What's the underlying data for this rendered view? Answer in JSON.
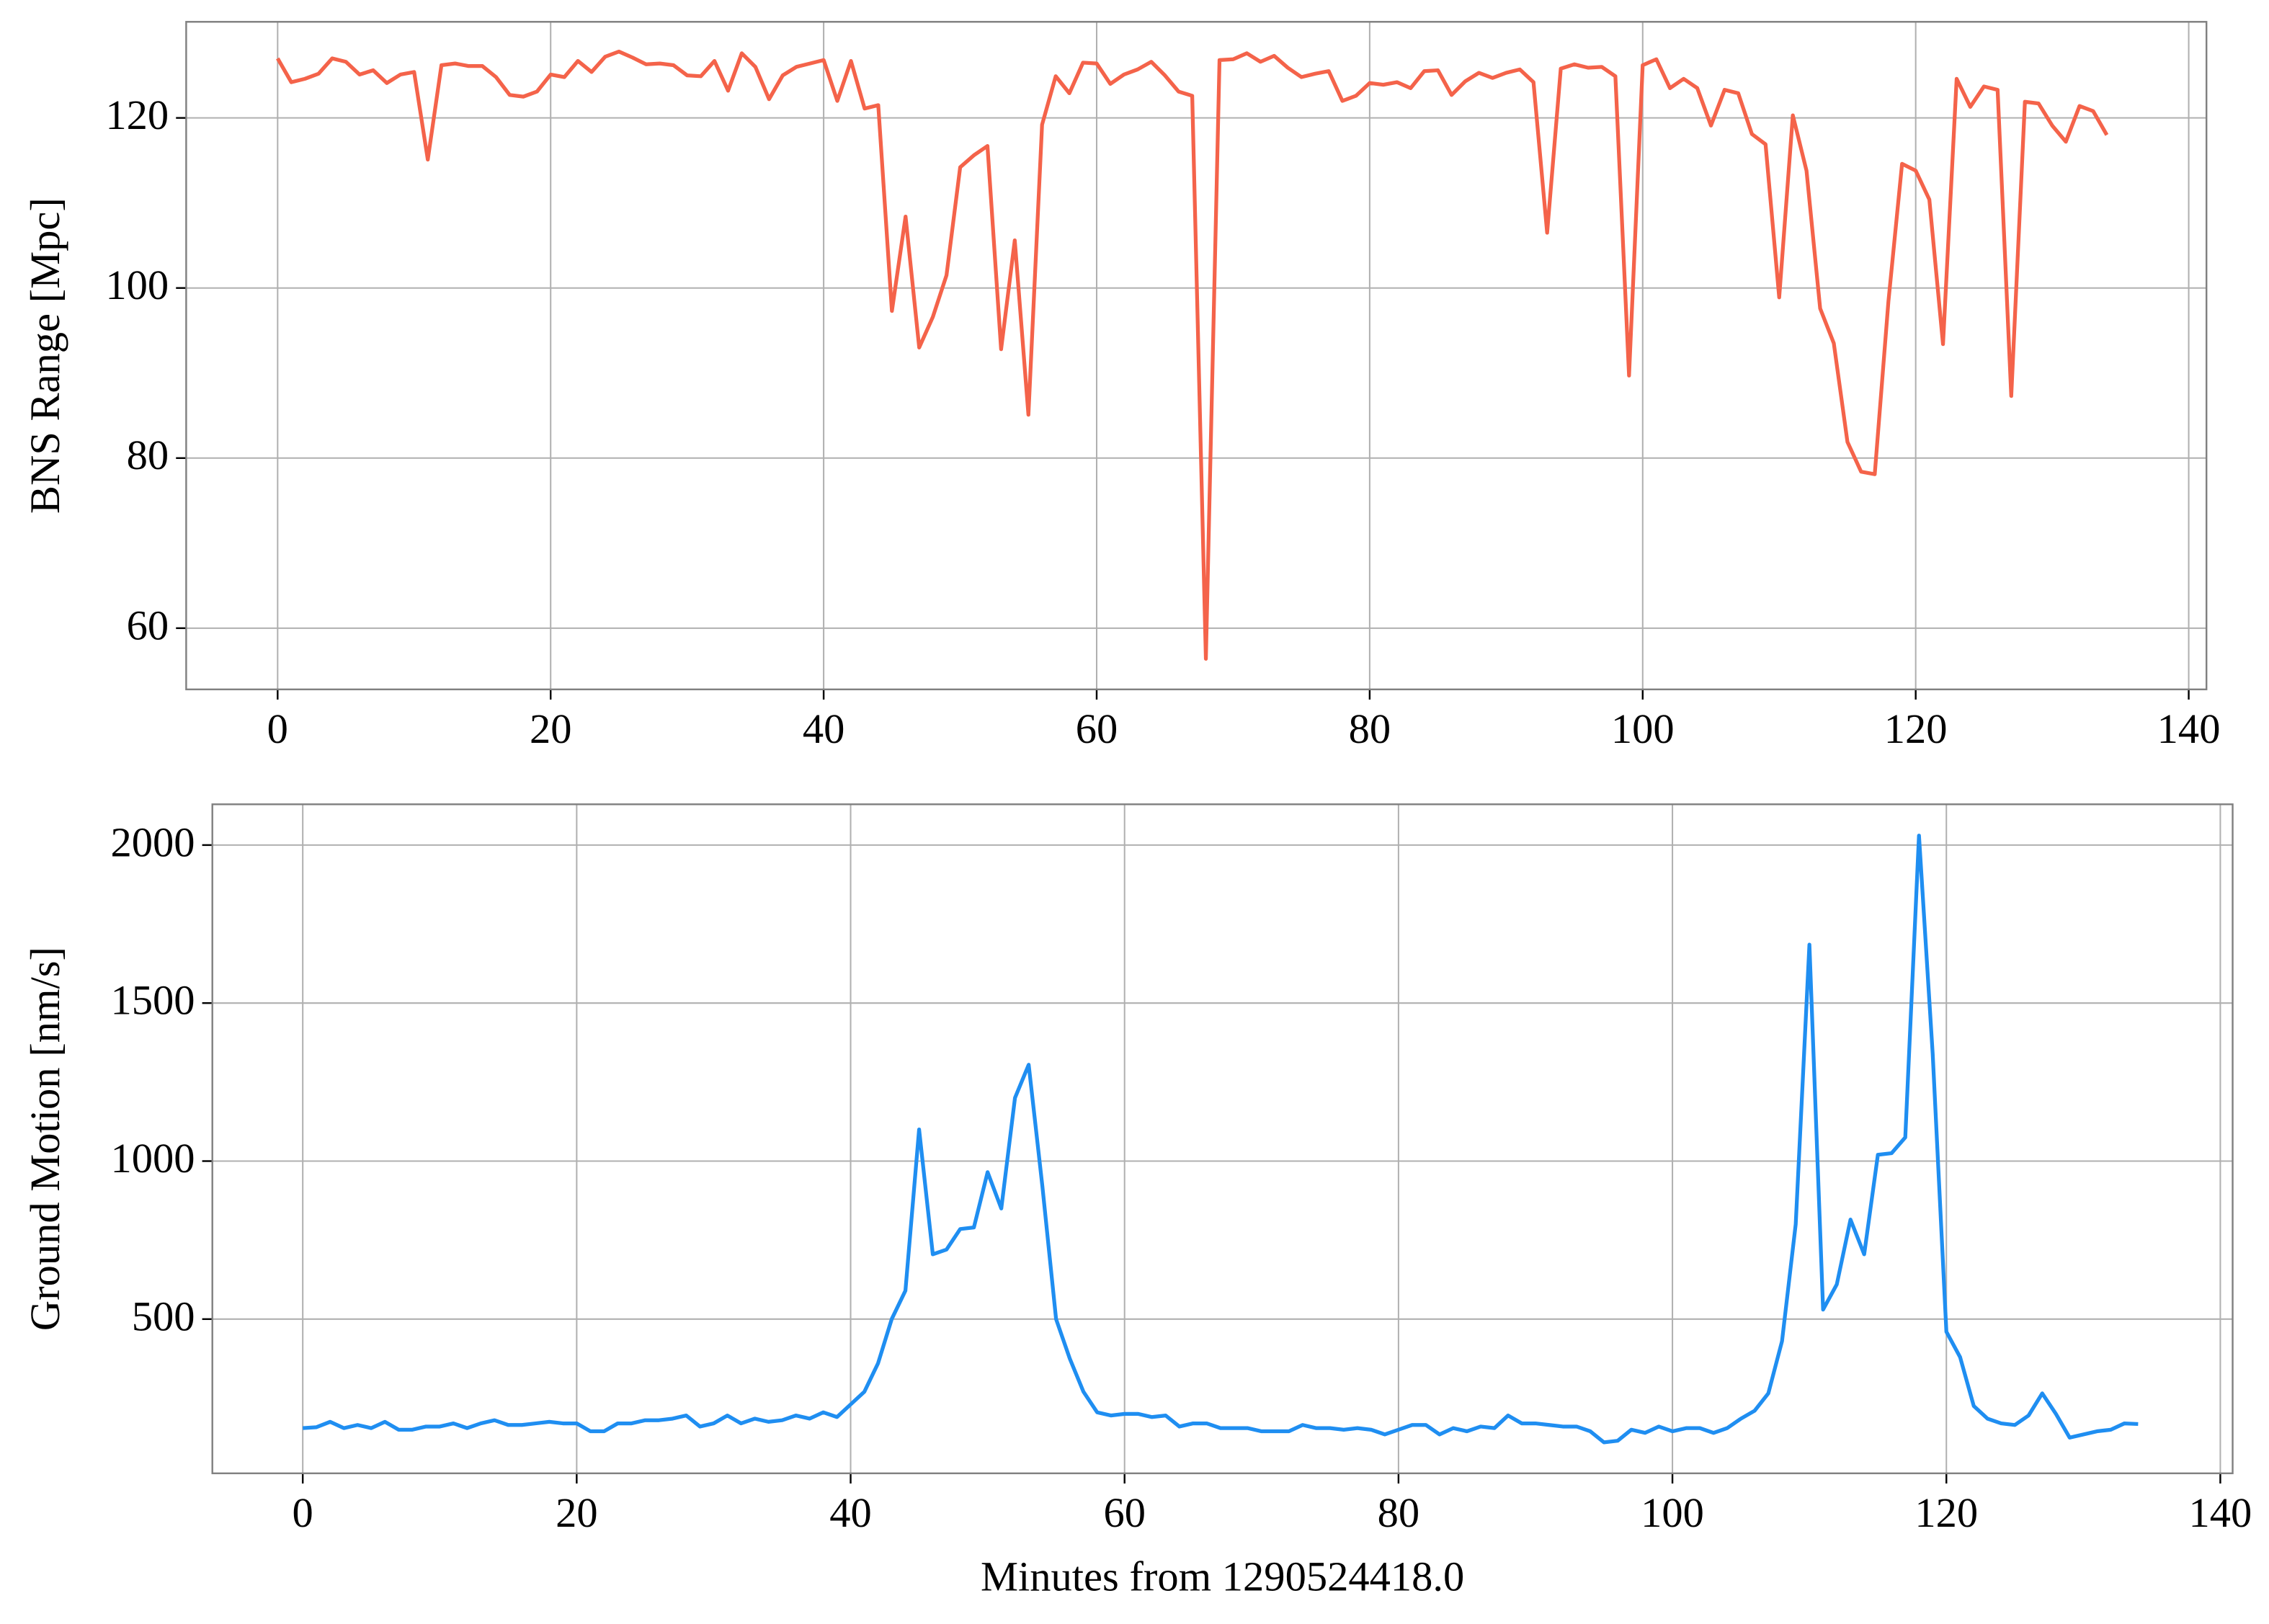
{
  "chart_data": [
    {
      "type": "line",
      "ylabel": "BNS Range [Mpc]",
      "color": "#f4634a",
      "grid": true,
      "xlim": [
        -6.7,
        141.3
      ],
      "ylim": [
        52.8,
        131.3
      ],
      "xticks": [
        0,
        20,
        40,
        60,
        80,
        100,
        120,
        140
      ],
      "yticks": [
        60,
        80,
        100,
        120
      ],
      "x": [
        0,
        1,
        2,
        3,
        4,
        5,
        6,
        7,
        8,
        9,
        10,
        11,
        12,
        13,
        14,
        15,
        16,
        17,
        18,
        19,
        20,
        21,
        22,
        23,
        24,
        25,
        26,
        27,
        28,
        29,
        30,
        31,
        32,
        33,
        34,
        35,
        36,
        37,
        38,
        39,
        40,
        41,
        42,
        43,
        44,
        45,
        46,
        47,
        48,
        49,
        50,
        51,
        52,
        53,
        54,
        55,
        56,
        57,
        58,
        59,
        60,
        61,
        62,
        63,
        64,
        65,
        66,
        67,
        68,
        69,
        70,
        71,
        72,
        73,
        74,
        75,
        76,
        77,
        78,
        79,
        80,
        81,
        82,
        83,
        84,
        85,
        86,
        87,
        88,
        89,
        90,
        91,
        92,
        93,
        94,
        95,
        96,
        97,
        98,
        99,
        100,
        101,
        102,
        103,
        104,
        105,
        106,
        107,
        108,
        109,
        110,
        111,
        112,
        113,
        114,
        115,
        116,
        117,
        118,
        119,
        120,
        121,
        122,
        123,
        124,
        125,
        126,
        127,
        128,
        129,
        130,
        131,
        132,
        133,
        134
      ],
      "values": [
        127,
        124.2,
        124.6,
        125.2,
        127,
        126.6,
        125.1,
        125.6,
        124.1,
        125.1,
        125.4,
        115.1,
        126.2,
        126.4,
        126.1,
        126.1,
        124.8,
        122.7,
        122.5,
        123.1,
        125.1,
        124.8,
        126.7,
        125.4,
        127.2,
        127.8,
        127.1,
        126.3,
        126.4,
        126.2,
        125,
        124.9,
        126.7,
        123.2,
        127.6,
        126,
        122.2,
        125,
        126,
        126.4,
        126.8,
        122,
        126.7,
        121.1,
        121.5,
        97.3,
        108.4,
        93,
        96.6,
        101.5,
        114.2,
        115.6,
        116.7,
        92.8,
        105.6,
        85.1,
        119.2,
        124.9,
        122.9,
        126.5,
        126.4,
        124,
        125.1,
        125.7,
        126.6,
        125,
        123.1,
        122.6,
        56.4,
        126.8,
        126.9,
        127.6,
        126.6,
        127.3,
        125.9,
        124.8,
        125.2,
        125.5,
        122,
        122.6,
        124.1,
        123.9,
        124.2,
        123.5,
        125.5,
        125.6,
        122.7,
        124.3,
        125.3,
        124.7,
        125.3,
        125.7,
        124.2,
        106.5,
        125.8,
        126.3,
        125.9,
        126,
        124.9,
        89.7,
        126.2,
        126.9,
        123.5,
        124.6,
        123.5,
        119.1,
        123.3,
        122.9,
        118.1,
        116.9,
        98.9,
        120.3,
        113.8,
        97.6,
        93.5,
        81.9,
        78.4,
        78.1,
        98.4,
        114.6,
        113.8,
        110.4,
        93.4,
        124.6,
        121.3,
        123.7,
        123.3,
        87.3,
        121.9,
        121.7,
        119.1,
        117.2,
        121.4,
        120.8,
        118
      ]
    },
    {
      "type": "line",
      "ylabel": "Ground Motion [nm/s]",
      "xlabel": "Minutes from 1290524418.0",
      "color": "#1f8ef1",
      "grid": true,
      "xlim": [
        -6.6,
        140.9
      ],
      "ylim": [
        12,
        2129
      ],
      "xticks": [
        0,
        20,
        40,
        60,
        80,
        100,
        120,
        140
      ],
      "yticks": [
        500,
        1000,
        1500,
        2000
      ],
      "x": [
        0,
        1,
        2,
        3,
        4,
        5,
        6,
        7,
        8,
        9,
        10,
        11,
        12,
        13,
        14,
        15,
        16,
        17,
        18,
        19,
        20,
        21,
        22,
        23,
        24,
        25,
        26,
        27,
        28,
        29,
        30,
        31,
        32,
        33,
        34,
        35,
        36,
        37,
        38,
        39,
        40,
        41,
        42,
        43,
        44,
        45,
        46,
        47,
        48,
        49,
        50,
        51,
        52,
        53,
        54,
        55,
        56,
        57,
        58,
        59,
        60,
        61,
        62,
        63,
        64,
        65,
        66,
        67,
        68,
        69,
        70,
        71,
        72,
        73,
        74,
        75,
        76,
        77,
        78,
        79,
        80,
        81,
        82,
        83,
        84,
        85,
        86,
        87,
        88,
        89,
        90,
        91,
        92,
        93,
        94,
        95,
        96,
        97,
        98,
        99,
        100,
        101,
        102,
        103,
        104,
        105,
        106,
        107,
        108,
        109,
        110,
        111,
        112,
        113,
        114,
        115,
        116,
        117,
        118,
        119,
        120,
        121,
        122,
        123,
        124,
        125,
        126,
        127,
        128,
        129,
        130,
        131,
        132,
        133,
        134
      ],
      "values": [
        155,
        158,
        175,
        155,
        165,
        155,
        175,
        150,
        150,
        160,
        160,
        170,
        155,
        170,
        180,
        165,
        165,
        170,
        175,
        170,
        170,
        145,
        145,
        170,
        170,
        180,
        180,
        185,
        195,
        160,
        170,
        195,
        170,
        185,
        175,
        180,
        195,
        185,
        205,
        190,
        230,
        270,
        360,
        500,
        590,
        1100,
        705,
        720,
        785,
        790,
        965,
        850,
        1200,
        1305,
        920,
        500,
        375,
        270,
        205,
        195,
        200,
        200,
        190,
        195,
        160,
        170,
        170,
        155,
        155,
        155,
        145,
        145,
        145,
        165,
        155,
        155,
        150,
        155,
        150,
        135,
        150,
        165,
        165,
        135,
        155,
        145,
        160,
        155,
        195,
        170,
        170,
        165,
        160,
        160,
        145,
        110,
        115,
        150,
        140,
        160,
        145,
        155,
        155,
        140,
        155,
        185,
        210,
        265,
        430,
        800,
        1685,
        530,
        610,
        815,
        705,
        1020,
        1025,
        1075,
        2030,
        1340,
        460,
        380,
        225,
        185,
        170,
        165,
        195,
        265,
        200,
        125,
        135,
        145,
        150,
        170,
        168
      ]
    }
  ]
}
